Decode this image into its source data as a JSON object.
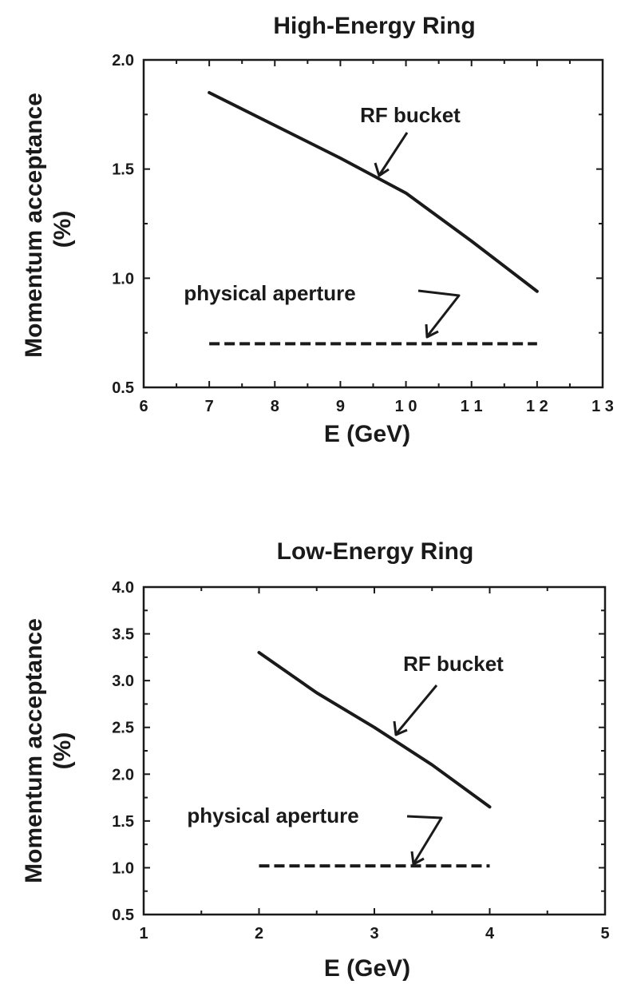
{
  "chart_data": [
    {
      "type": "line",
      "title": "High-Energy Ring",
      "xlabel": "E (GeV)",
      "ylabel": "Momentum  acceptance",
      "ylabel_unit": "(%)",
      "xlim": [
        6,
        13
      ],
      "ylim": [
        0.5,
        2.0
      ],
      "x_ticks": [
        6,
        7,
        8,
        9,
        10,
        11,
        12,
        13
      ],
      "x_tick_labels": [
        "6",
        "7",
        "8",
        "9",
        "1 0",
        "1 1",
        "1 2",
        "1 3"
      ],
      "y_ticks": [
        0.5,
        1.0,
        1.5,
        2.0
      ],
      "y_tick_labels": [
        "0.5",
        "1.0",
        "1.5",
        "2.0"
      ],
      "grid": false,
      "series": [
        {
          "name": "RF bucket",
          "style": "solid",
          "x": [
            7,
            8,
            9,
            10,
            11,
            12
          ],
          "y": [
            1.85,
            1.7,
            1.55,
            1.39,
            1.17,
            0.94
          ]
        },
        {
          "name": "physical aperture",
          "style": "dashed",
          "x": [
            7,
            12
          ],
          "y": [
            0.7,
            0.7
          ]
        }
      ],
      "annotations": [
        {
          "text": "RF bucket",
          "target_x": 9.5,
          "target_y": 1.45
        },
        {
          "text": "physical aperture",
          "target_x": 10.2,
          "target_y": 0.7
        }
      ]
    },
    {
      "type": "line",
      "title": "Low-Energy Ring",
      "xlabel": "E (GeV)",
      "ylabel": "Momentum  acceptance",
      "ylabel_unit": "(%)",
      "xlim": [
        1,
        5
      ],
      "ylim": [
        0.5,
        4.0
      ],
      "x_ticks": [
        1,
        2,
        3,
        4,
        5
      ],
      "x_tick_labels": [
        "1",
        "2",
        "3",
        "4",
        "5"
      ],
      "y_ticks": [
        0.5,
        1.0,
        1.5,
        2.0,
        2.5,
        3.0,
        3.5,
        4.0
      ],
      "y_tick_labels": [
        "0.5",
        "1.0",
        "1.5",
        "2.0",
        "2.5",
        "3.0",
        "3.5",
        "4.0"
      ],
      "grid": false,
      "series": [
        {
          "name": "RF bucket",
          "style": "solid",
          "x": [
            2,
            2.5,
            3,
            3.5,
            4
          ],
          "y": [
            3.3,
            2.87,
            2.5,
            2.1,
            1.65
          ]
        },
        {
          "name": "physical aperture",
          "style": "dashed",
          "x": [
            2,
            4
          ],
          "y": [
            1.02,
            1.02
          ]
        }
      ],
      "annotations": [
        {
          "text": "RF bucket",
          "target_x": 3.15,
          "target_y": 2.4
        },
        {
          "text": "physical aperture",
          "target_x": 3.3,
          "target_y": 1.02
        }
      ]
    }
  ]
}
